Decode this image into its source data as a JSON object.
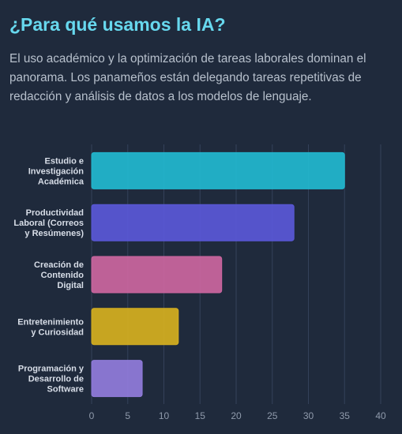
{
  "header": {
    "title": "¿Para qué usamos la IA?",
    "description": "El uso académico y la optimización de tareas laborales dominan el panorama. Los panameños están delegando tareas repetitivas de redacción y análisis de datos a los modelos de lenguaje."
  },
  "chart_data": {
    "type": "hbar",
    "categories": [
      [
        "Estudio e",
        "Investigación",
        "Académica"
      ],
      [
        "Productividad",
        "Laboral (Correos",
        "y Resúmenes)"
      ],
      [
        "Creación de",
        "Contenido",
        "Digital"
      ],
      [
        "Entretenimiento",
        "y Curiosidad"
      ],
      [
        "Programación y",
        "Desarrollo de",
        "Software"
      ]
    ],
    "values": [
      35,
      28,
      18,
      12,
      7
    ],
    "colors": [
      "#22b8d0",
      "#5a58d8",
      "#cc66a0",
      "#d6b020",
      "#917cdc"
    ],
    "xlim": [
      0,
      40
    ],
    "xticks": [
      0,
      5,
      10,
      15,
      20,
      25,
      30,
      35,
      40
    ],
    "grid": true
  }
}
